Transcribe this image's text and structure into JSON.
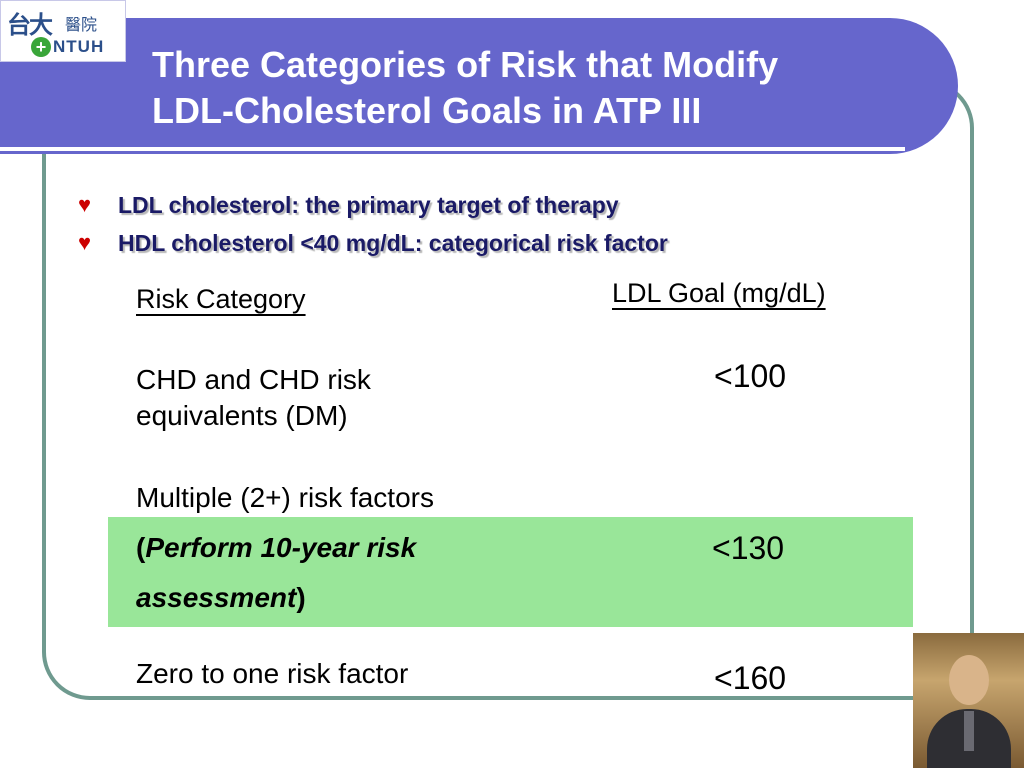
{
  "logo": {
    "chinese": "台大",
    "chinese_small": "醫院",
    "english": "NTUH"
  },
  "title": {
    "line1": "Three Categories of Risk that Modify",
    "line2": "LDL-Cholesterol Goals in ATP III"
  },
  "bullets": [
    "LDL cholesterol: the primary target of therapy",
    "HDL cholesterol <40 mg/dL: categorical risk factor"
  ],
  "table": {
    "header_category": "Risk Category",
    "header_goal": "LDL Goal (mg/dL)",
    "rows": [
      {
        "category": "CHD and CHD risk equivalents (DM)",
        "goal": "<100"
      },
      {
        "category": "Multiple (2+) risk factors",
        "note_open": "(",
        "note_line1": "Perform 10-year risk",
        "note_line2": "assessment",
        "note_close": ")",
        "goal": "<130"
      },
      {
        "category": "Zero to one risk factor",
        "goal": "<160"
      }
    ]
  },
  "colors": {
    "banner": "#6666cc",
    "frame": "#6f9a8f",
    "highlight": "#99e699",
    "bullet_text": "#1a1a66",
    "bullet_marker": "#cc0000"
  },
  "icons": {
    "bullet_marker": "heart-icon",
    "logo_cross": "plus-icon"
  }
}
